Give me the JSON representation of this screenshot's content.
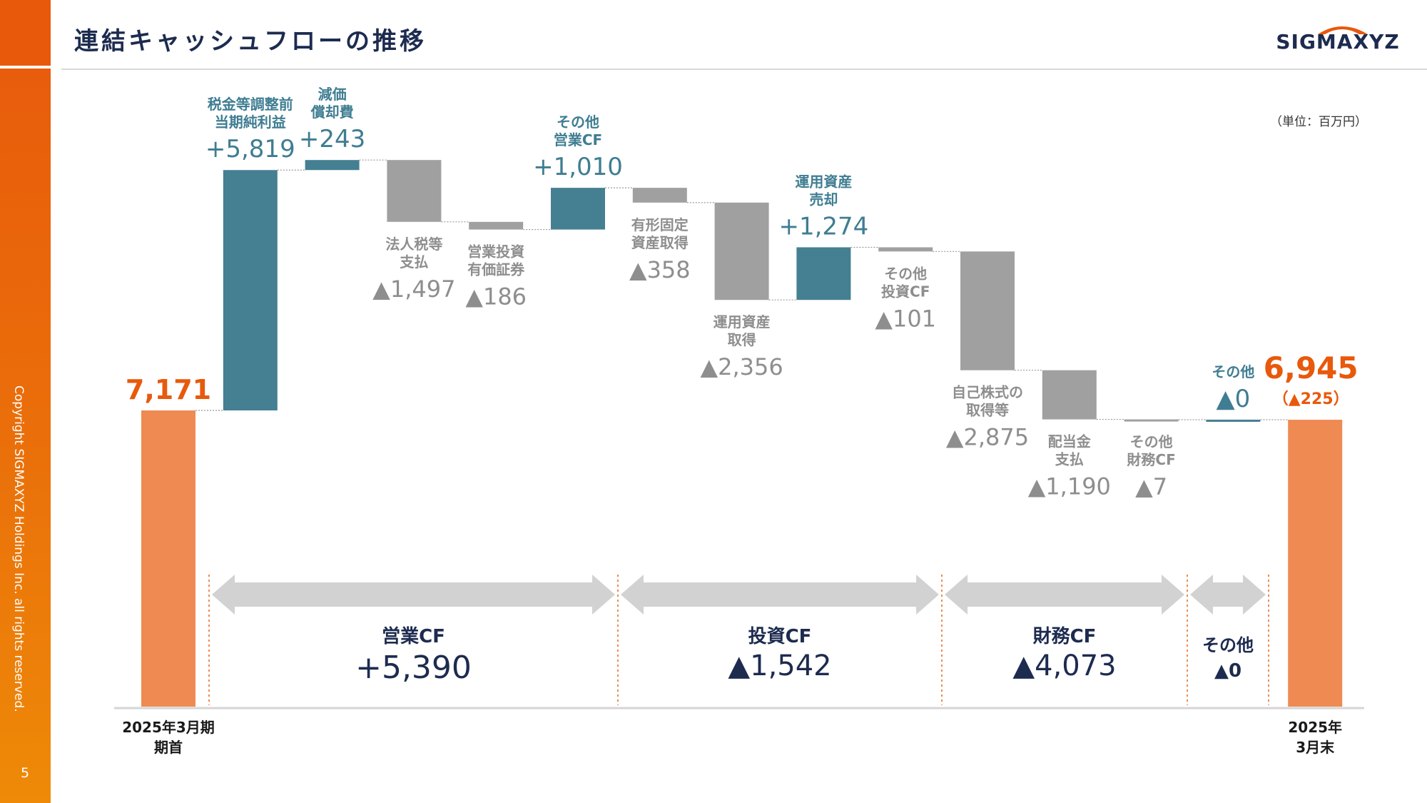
{
  "header": {
    "title": "連結キャッシュフローの推移",
    "logo": "SIGMAXYZ",
    "unit_note": "（単位：百万円）"
  },
  "sidebar": {
    "copyright": "Copyright SIGMAXYZ Holdings Inc. all rights reserved.",
    "page_number": "5"
  },
  "colors": {
    "accent": "#e8590c",
    "endpoint_bar": "#ef8a52",
    "positive_bar": "#457f92",
    "negative_bar": "#a0a0a0",
    "navy_text": "#1d2b4f",
    "positive_text": "#3f7d92",
    "negative_text": "#8e8e8e",
    "arrow": "#d2d2d2"
  },
  "chart_data": {
    "type": "waterfall",
    "title": "連結キャッシュフローの推移",
    "unit": "百万円",
    "ylim": [
      0,
      15000
    ],
    "steps": [
      {
        "kind": "total",
        "label_lines": [
          "2025年3月期",
          "期首"
        ],
        "value": 7171,
        "value_text": "7,171"
      },
      {
        "kind": "delta",
        "label_lines": [
          "税金等調整前",
          "当期純利益"
        ],
        "value": 5819,
        "value_text": "+5,819"
      },
      {
        "kind": "delta",
        "label_lines": [
          "減価",
          "償却費"
        ],
        "value": 243,
        "value_text": "+243"
      },
      {
        "kind": "delta",
        "label_lines": [
          "法人税等",
          "支払"
        ],
        "value": -1497,
        "value_text": "▲1,497"
      },
      {
        "kind": "delta",
        "label_lines": [
          "営業投資",
          "有価証券"
        ],
        "value": -186,
        "value_text": "▲186"
      },
      {
        "kind": "delta",
        "label_lines": [
          "その他",
          "営業CF"
        ],
        "value": 1010,
        "value_text": "+1,010"
      },
      {
        "kind": "delta",
        "label_lines": [
          "有形固定",
          "資産取得"
        ],
        "value": -358,
        "value_text": "▲358"
      },
      {
        "kind": "delta",
        "label_lines": [
          "運用資産",
          "取得"
        ],
        "value": -2356,
        "value_text": "▲2,356"
      },
      {
        "kind": "delta",
        "label_lines": [
          "運用資産",
          "売却"
        ],
        "value": 1274,
        "value_text": "+1,274"
      },
      {
        "kind": "delta",
        "label_lines": [
          "その他",
          "投資CF"
        ],
        "value": -101,
        "value_text": "▲101"
      },
      {
        "kind": "delta",
        "label_lines": [
          "自己株式の",
          "取得等"
        ],
        "value": -2875,
        "value_text": "▲2,875"
      },
      {
        "kind": "delta",
        "label_lines": [
          "配当金",
          "支払"
        ],
        "value": -1190,
        "value_text": "▲1,190"
      },
      {
        "kind": "delta",
        "label_lines": [
          "その他",
          "財務CF"
        ],
        "value": -7,
        "value_text": "▲7"
      },
      {
        "kind": "delta",
        "label_lines": [
          "その他"
        ],
        "value": 0,
        "value_text": "▲0"
      },
      {
        "kind": "total",
        "label_lines": [
          "2025年",
          "3月末"
        ],
        "value": 6945,
        "value_text": "6,945",
        "sub_text": "（▲225）"
      }
    ],
    "groups": [
      {
        "name": "営業CF",
        "value": 5390,
        "value_text": "+5,390"
      },
      {
        "name": "投資CF",
        "value": -1542,
        "value_text": "▲1,542"
      },
      {
        "name": "財務CF",
        "value": -4073,
        "value_text": "▲4,073"
      },
      {
        "name": "その他",
        "value": 0,
        "value_text": "▲0"
      }
    ]
  }
}
